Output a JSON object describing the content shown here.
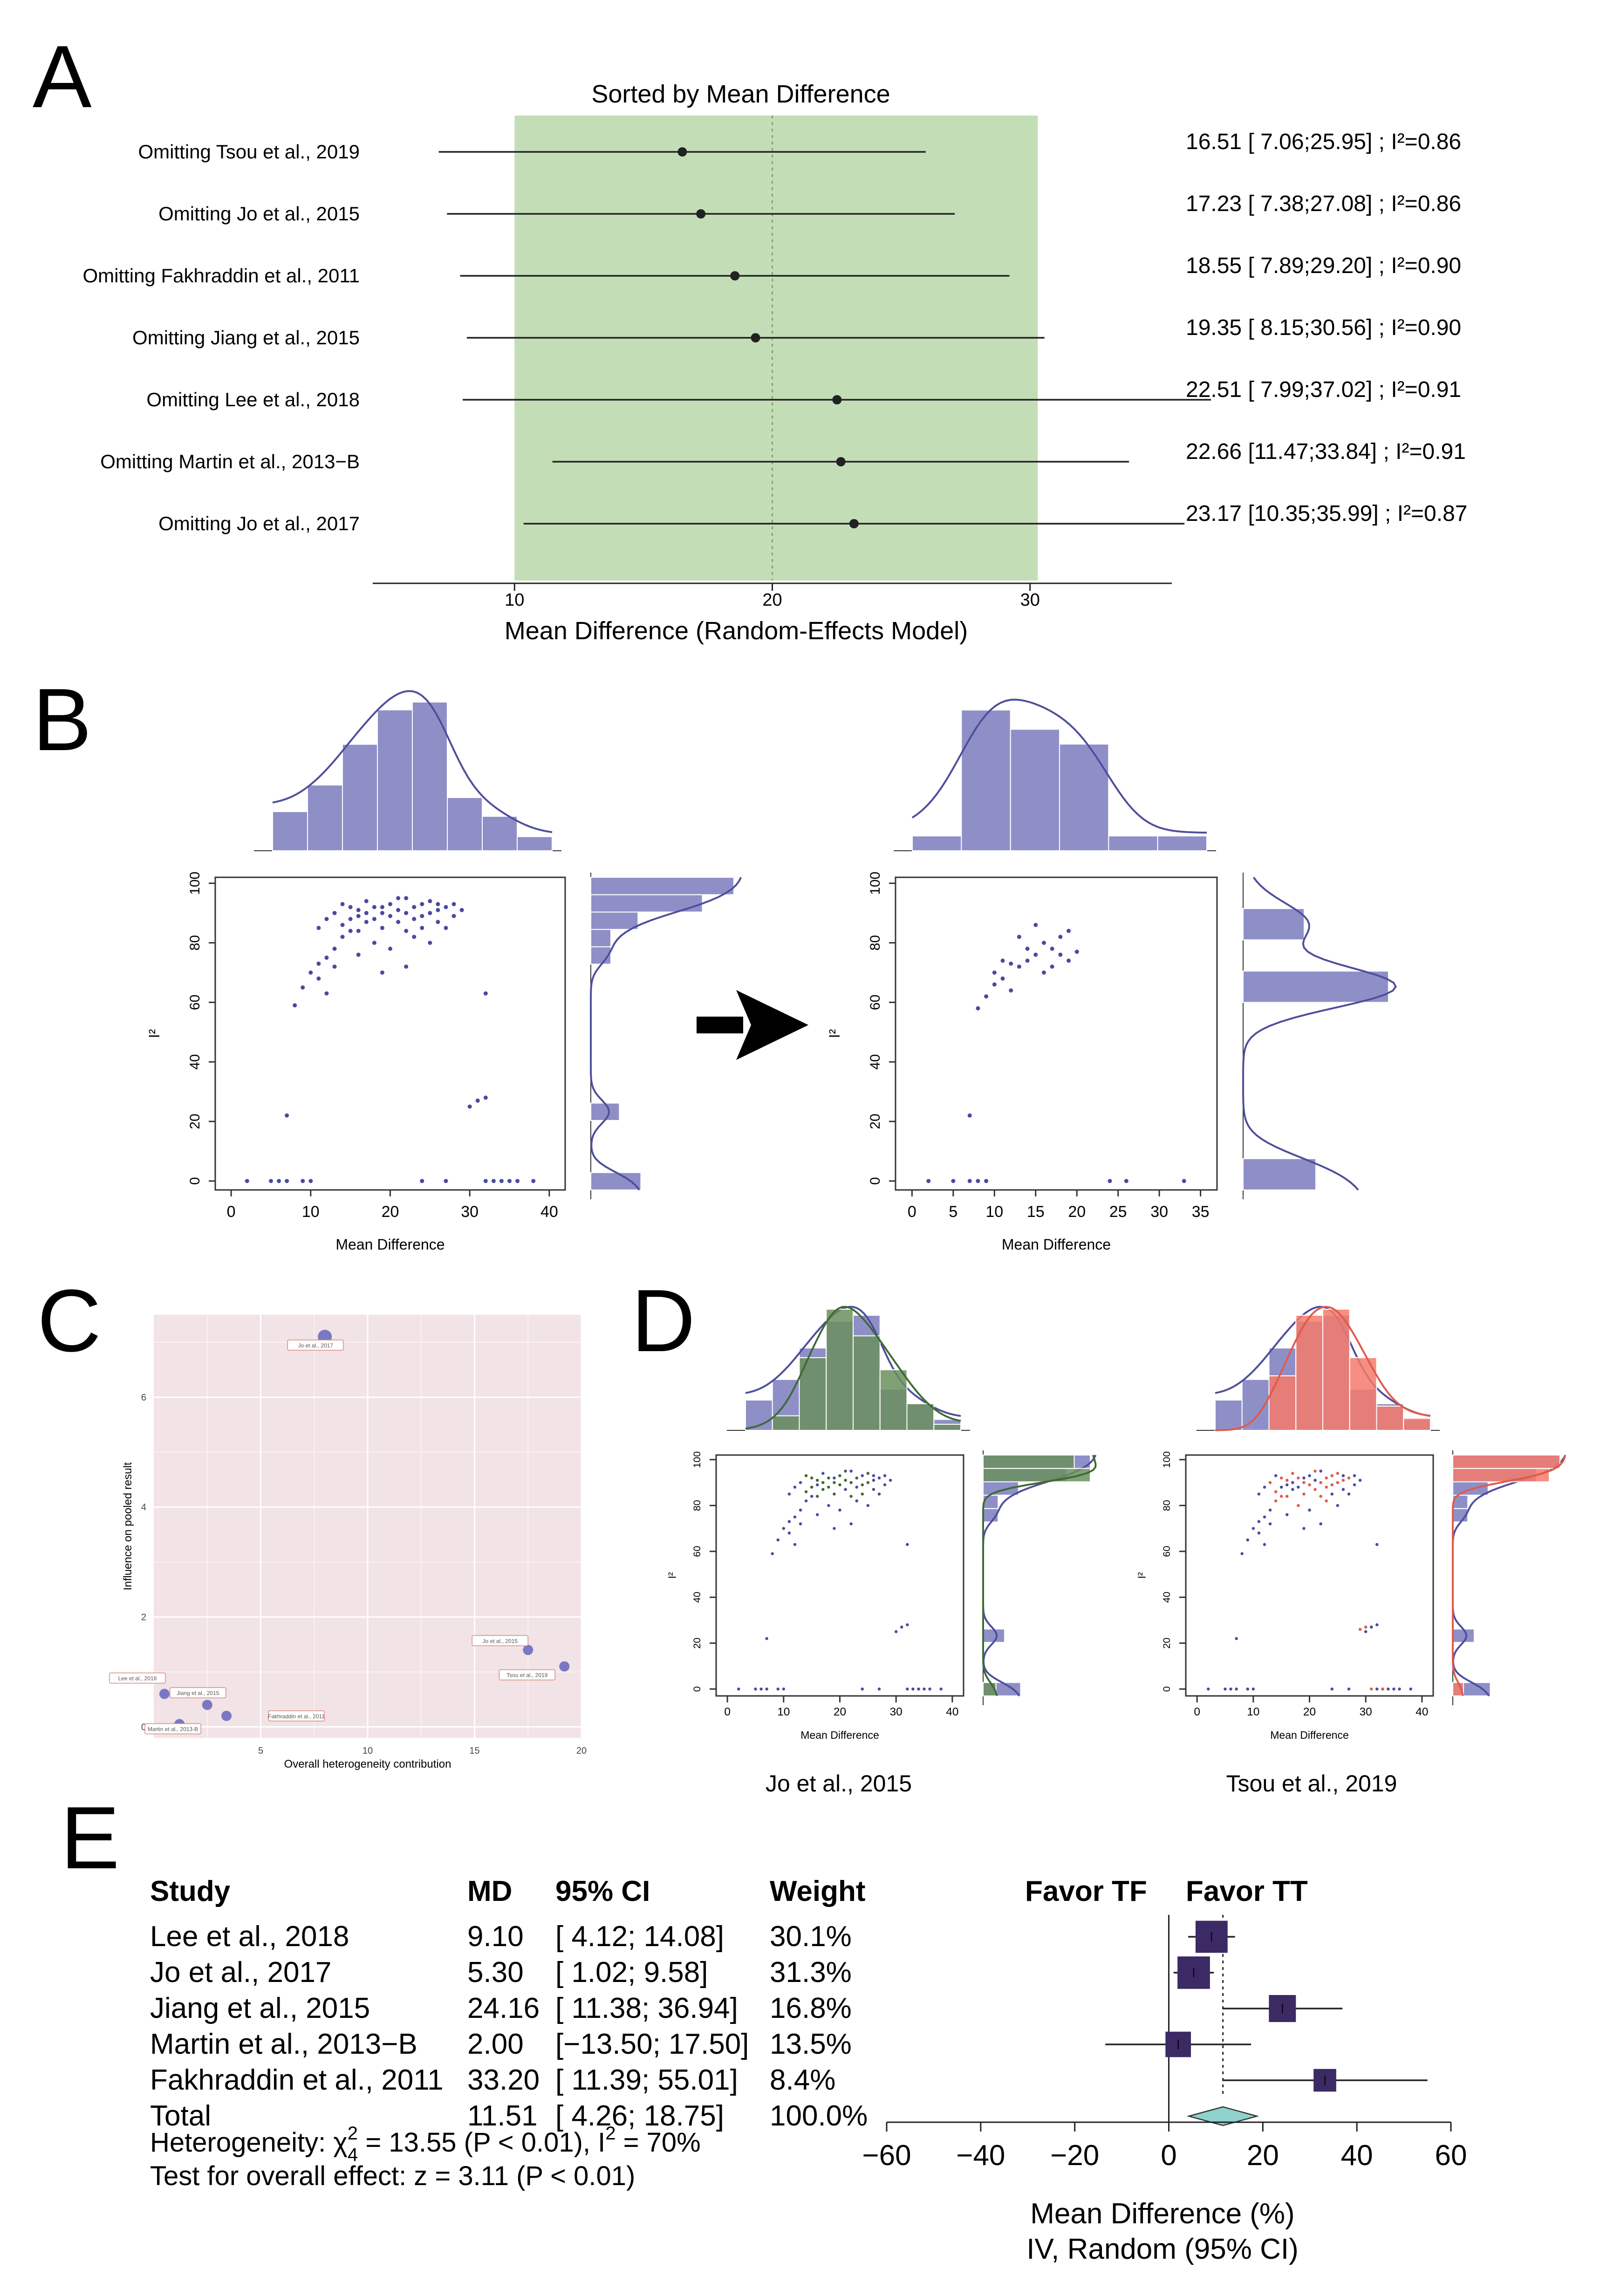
{
  "panel_labels": [
    "A",
    "B",
    "C",
    "D",
    "E"
  ],
  "colors": {
    "green_band": "#c3deb6",
    "bar_purple": "#8f8fc8",
    "curve_purple": "#4e4e9c",
    "dot_purple": "#4a4aa0",
    "bar_green": "#6b8f5e",
    "curve_green": "#3d6b33",
    "bar_red": "#f57a6b",
    "curve_red": "#e05a4a",
    "box_dark": "#3b2a63",
    "diamond": "#8fd1cf",
    "panelC_bg": "#f2e3e6"
  },
  "chart_data": [
    {
      "id": "A",
      "type": "forest-line",
      "title": "Sorted by Mean Difference",
      "xlabel": "Mean Difference (Random-Effects Model)",
      "xlim": [
        4.5,
        35.5
      ],
      "xticks": [
        "10",
        "20",
        "30"
      ],
      "ref_line": 20,
      "green_band": [
        10,
        30.3
      ],
      "rows": [
        {
          "label": "Omitting Tsou et al., 2019",
          "est": 16.51,
          "lo": 7.06,
          "hi": 25.95,
          "text": "16.51 [ 7.06;25.95] ; I²=0.86"
        },
        {
          "label": "Omitting Jo et al., 2015",
          "est": 17.23,
          "lo": 7.38,
          "hi": 27.08,
          "text": "17.23 [ 7.38;27.08] ; I²=0.86"
        },
        {
          "label": "Omitting Fakhraddin et al., 2011",
          "est": 18.55,
          "lo": 7.89,
          "hi": 29.2,
          "text": "18.55 [ 7.89;29.20] ; I²=0.90"
        },
        {
          "label": "Omitting Jiang et al., 2015",
          "est": 19.35,
          "lo": 8.15,
          "hi": 30.56,
          "text": "19.35 [ 8.15;30.56] ; I²=0.90"
        },
        {
          "label": "Omitting Lee et al., 2018",
          "est": 22.51,
          "lo": 7.99,
          "hi": 37.02,
          "text": "22.51 [ 7.99;37.02] ; I²=0.91"
        },
        {
          "label": "Omitting Martin et al., 2013−B",
          "est": 22.66,
          "lo": 11.47,
          "hi": 33.84,
          "text": "22.66 [11.47;33.84] ; I²=0.91"
        },
        {
          "label": "Omitting Jo et al., 2017",
          "est": 23.17,
          "lo": 10.35,
          "hi": 35.99,
          "text": "23.17 [10.35;35.99] ; I²=0.87"
        }
      ]
    },
    {
      "id": "B-left",
      "type": "scatter-with-marginal-histograms",
      "xlabel": "Mean Difference",
      "ylabel": "I²",
      "xlim": [
        -2,
        42
      ],
      "ylim": [
        -3,
        102
      ],
      "xticks": [
        "0",
        "10",
        "20",
        "30",
        "40"
      ],
      "yticks": [
        "0",
        "20",
        "40",
        "60",
        "80",
        "100"
      ],
      "top_hist": [
        0.25,
        0.42,
        0.68,
        0.9,
        0.95,
        0.34,
        0.22,
        0.09
      ],
      "right_hist": [
        0.35,
        0.0,
        0.0,
        0.0,
        0.2,
        0.0,
        0.0,
        0.0,
        0.0,
        0.0,
        0.0,
        0.0,
        0.0,
        0.14,
        0.14,
        0.33,
        0.78,
        1.0
      ],
      "points": [
        [
          2,
          0
        ],
        [
          5,
          0
        ],
        [
          6,
          0
        ],
        [
          7,
          0
        ],
        [
          9,
          0
        ],
        [
          10,
          0
        ],
        [
          24,
          0
        ],
        [
          27,
          0
        ],
        [
          32,
          0
        ],
        [
          33,
          0
        ],
        [
          34,
          0
        ],
        [
          35,
          0
        ],
        [
          36,
          0
        ],
        [
          38,
          0
        ],
        [
          7,
          22
        ],
        [
          30,
          25
        ],
        [
          31,
          27
        ],
        [
          32,
          28
        ],
        [
          32,
          63
        ],
        [
          8,
          59
        ],
        [
          9,
          65
        ],
        [
          10,
          70
        ],
        [
          11,
          73
        ],
        [
          11,
          68
        ],
        [
          12,
          75
        ],
        [
          12,
          63
        ],
        [
          13,
          78
        ],
        [
          14,
          82
        ],
        [
          14,
          86
        ],
        [
          15,
          88
        ],
        [
          15,
          84
        ],
        [
          16,
          89
        ],
        [
          16,
          91
        ],
        [
          17,
          87
        ],
        [
          17,
          90
        ],
        [
          18,
          92
        ],
        [
          18,
          88
        ],
        [
          19,
          85
        ],
        [
          19,
          90
        ],
        [
          20,
          93
        ],
        [
          20,
          89
        ],
        [
          21,
          91
        ],
        [
          21,
          87
        ],
        [
          22,
          95
        ],
        [
          22,
          90
        ],
        [
          23,
          92
        ],
        [
          23,
          88
        ],
        [
          24,
          93
        ],
        [
          24,
          85
        ],
        [
          25,
          90
        ],
        [
          25,
          94
        ],
        [
          26,
          91
        ],
        [
          26,
          87
        ],
        [
          27,
          92
        ],
        [
          28,
          89
        ],
        [
          13,
          90
        ],
        [
          14,
          93
        ],
        [
          16,
          84
        ],
        [
          18,
          80
        ],
        [
          20,
          78
        ],
        [
          23,
          82
        ],
        [
          25,
          80
        ],
        [
          27,
          85
        ],
        [
          29,
          91
        ],
        [
          11,
          85
        ],
        [
          12,
          88
        ],
        [
          15,
          92
        ],
        [
          17,
          94
        ],
        [
          19,
          92
        ],
        [
          21,
          95
        ],
        [
          22,
          84
        ],
        [
          24,
          89
        ],
        [
          26,
          93
        ],
        [
          28,
          93
        ],
        [
          13,
          72
        ],
        [
          16,
          76
        ],
        [
          19,
          70
        ],
        [
          22,
          72
        ]
      ]
    },
    {
      "id": "B-right",
      "type": "scatter-with-marginal-histograms",
      "xlabel": "Mean Difference",
      "ylabel": "I²",
      "xlim": [
        -2,
        37
      ],
      "ylim": [
        -3,
        102
      ],
      "xticks": [
        "0",
        "5",
        "10",
        "15",
        "20",
        "25",
        "30",
        "35"
      ],
      "yticks": [
        "0",
        "20",
        "40",
        "60",
        "80",
        "100"
      ],
      "top_hist": [
        0.1,
        0.95,
        0.82,
        0.72,
        0.1,
        0.1
      ],
      "right_hist": [
        0.5,
        0.0,
        0.0,
        0.0,
        0.0,
        0.0,
        1.0,
        0.0,
        0.42,
        0.0
      ],
      "points": [
        [
          2,
          0
        ],
        [
          5,
          0
        ],
        [
          7,
          0
        ],
        [
          8,
          0
        ],
        [
          9,
          0
        ],
        [
          24,
          0
        ],
        [
          26,
          0
        ],
        [
          33,
          0
        ],
        [
          7,
          22
        ],
        [
          8,
          58
        ],
        [
          9,
          62
        ],
        [
          10,
          70
        ],
        [
          10,
          66
        ],
        [
          11,
          74
        ],
        [
          11,
          68
        ],
        [
          12,
          73
        ],
        [
          12,
          64
        ],
        [
          13,
          72
        ],
        [
          14,
          78
        ],
        [
          15,
          86
        ],
        [
          15,
          76
        ],
        [
          16,
          70
        ],
        [
          16,
          80
        ],
        [
          17,
          78
        ],
        [
          17,
          72
        ],
        [
          18,
          82
        ],
        [
          18,
          76
        ],
        [
          19,
          84
        ],
        [
          19,
          74
        ],
        [
          20,
          77
        ],
        [
          14,
          74
        ],
        [
          13,
          82
        ]
      ]
    },
    {
      "id": "C",
      "type": "scatter",
      "xlabel": "Overall heterogeneity contribution",
      "ylabel": "Influence on pooled result",
      "xlim": [
        0,
        20
      ],
      "ylim": [
        -0.2,
        7.5
      ],
      "xticks": [
        "5",
        "10",
        "15",
        "20"
      ],
      "yticks": [
        "0",
        "2",
        "4",
        "6"
      ],
      "points": [
        {
          "x": 8.0,
          "y": 7.1,
          "label": "Jo et al., 2017"
        },
        {
          "x": 17.5,
          "y": 1.4,
          "label": "Jo et al., 2015"
        },
        {
          "x": 19.2,
          "y": 1.1,
          "label": "Tsou et al., 2019"
        },
        {
          "x": 0.5,
          "y": 0.6,
          "label": "Lee et al., 2018"
        },
        {
          "x": 2.5,
          "y": 0.4,
          "label": "Jiang et al., 2015"
        },
        {
          "x": 3.4,
          "y": 0.2,
          "label": "Fakhraddin et al., 2011"
        },
        {
          "x": 1.2,
          "y": 0.05,
          "label": "Martin et al., 2013-B"
        }
      ]
    },
    {
      "id": "D-left",
      "type": "overlaid-scatter-hist",
      "caption": "Jo et al., 2015",
      "xlabel": "Mean Difference",
      "ylabel": "I²",
      "xticks": [
        "0",
        "10",
        "20",
        "30",
        "40"
      ],
      "yticks": [
        "0",
        "20",
        "40",
        "60",
        "80",
        "100"
      ],
      "top_hist_all": [
        0.25,
        0.42,
        0.68,
        0.9,
        0.95,
        0.34,
        0.22,
        0.09
      ],
      "top_hist_highlight": [
        0.0,
        0.12,
        0.6,
        1.0,
        0.78,
        0.5,
        0.22,
        0.05
      ],
      "right_hist_all": [
        0.35,
        0.0,
        0.0,
        0.0,
        0.2,
        0.0,
        0.0,
        0.0,
        0.0,
        0.0,
        0.0,
        0.0,
        0.0,
        0.14,
        0.14,
        0.33,
        0.78,
        1.0
      ],
      "right_hist_highlight": [
        0.12,
        0.0,
        0.0,
        0.0,
        0.0,
        0.0,
        0.0,
        0.0,
        0.0,
        0.0,
        0.0,
        0.0,
        0.0,
        0.0,
        0.0,
        0.0,
        1.0,
        0.85
      ],
      "highlight": "green"
    },
    {
      "id": "D-right",
      "type": "overlaid-scatter-hist",
      "caption": "Tsou et al., 2019",
      "xlabel": "Mean Difference",
      "ylabel": "I²",
      "xticks": [
        "0",
        "10",
        "20",
        "30",
        "40"
      ],
      "yticks": [
        "0",
        "20",
        "40",
        "60",
        "80",
        "100"
      ],
      "top_hist_all": [
        0.25,
        0.42,
        0.68,
        0.9,
        0.95,
        0.34,
        0.22,
        0.09
      ],
      "top_hist_highlight": [
        0.0,
        0.0,
        0.45,
        0.95,
        1.0,
        0.6,
        0.2,
        0.1
      ],
      "right_hist_all": [
        0.35,
        0.0,
        0.0,
        0.0,
        0.2,
        0.0,
        0.0,
        0.0,
        0.0,
        0.0,
        0.0,
        0.0,
        0.0,
        0.14,
        0.14,
        0.33,
        0.78,
        1.0
      ],
      "right_hist_highlight": [
        0.1,
        0.0,
        0.0,
        0.0,
        0.0,
        0.0,
        0.0,
        0.0,
        0.0,
        0.0,
        0.0,
        0.0,
        0.0,
        0.0,
        0.0,
        0.0,
        0.9,
        1.0
      ],
      "highlight": "red"
    },
    {
      "id": "E",
      "type": "forest-plot",
      "headers": {
        "study": "Study",
        "md": "MD",
        "ci": "95% CI",
        "weight": "Weight",
        "favor_left": "Favor TF",
        "favor_right": "Favor TT"
      },
      "xlim": [
        -60,
        60
      ],
      "xticks": [
        "−60",
        "−40",
        "−20",
        "0",
        "20",
        "40",
        "60"
      ],
      "xlabel": "Mean Difference (%)",
      "xlabel2": "IV, Random (95% CI)",
      "studies": [
        {
          "study": "Lee et al., 2018",
          "md": 9.1,
          "lo": 4.12,
          "hi": 14.08,
          "md_text": "9.10",
          "ci_text": "[  4.12; 14.08]",
          "weight_text": "30.1%",
          "weight": 30.1
        },
        {
          "study": "Jo et al., 2017",
          "md": 5.3,
          "lo": 1.02,
          "hi": 9.58,
          "md_text": "5.30",
          "ci_text": "[  1.02;  9.58]",
          "weight_text": "31.3%",
          "weight": 31.3
        },
        {
          "study": "Jiang et al., 2015",
          "md": 24.16,
          "lo": 11.38,
          "hi": 36.94,
          "md_text": "24.16",
          "ci_text": "[ 11.38; 36.94]",
          "weight_text": "16.8%",
          "weight": 16.8
        },
        {
          "study": "Martin et al., 2013−B",
          "md": 2.0,
          "lo": -13.5,
          "hi": 17.5,
          "md_text": "2.00",
          "ci_text": "[−13.50; 17.50]",
          "weight_text": "13.5%",
          "weight": 13.5
        },
        {
          "study": "Fakhraddin et al., 2011",
          "md": 33.2,
          "lo": 11.39,
          "hi": 55.01,
          "md_text": "33.20",
          "ci_text": "[ 11.39; 55.01]",
          "weight_text": "8.4%",
          "weight": 8.4
        }
      ],
      "total": {
        "study": "Total",
        "md": 11.51,
        "lo": 4.26,
        "hi": 18.75,
        "md_text": "11.51",
        "ci_text": "[  4.26; 18.75]",
        "weight_text": "100.0%"
      },
      "heterogeneity_prefix": "Heterogeneity: χ",
      "heterogeneity_rest": " = 13.55 (P < 0.01), I",
      "heterogeneity_end": " = 70%",
      "overall_effect": "Test for overall effect: z = 3.11 (P < 0.01)"
    }
  ]
}
